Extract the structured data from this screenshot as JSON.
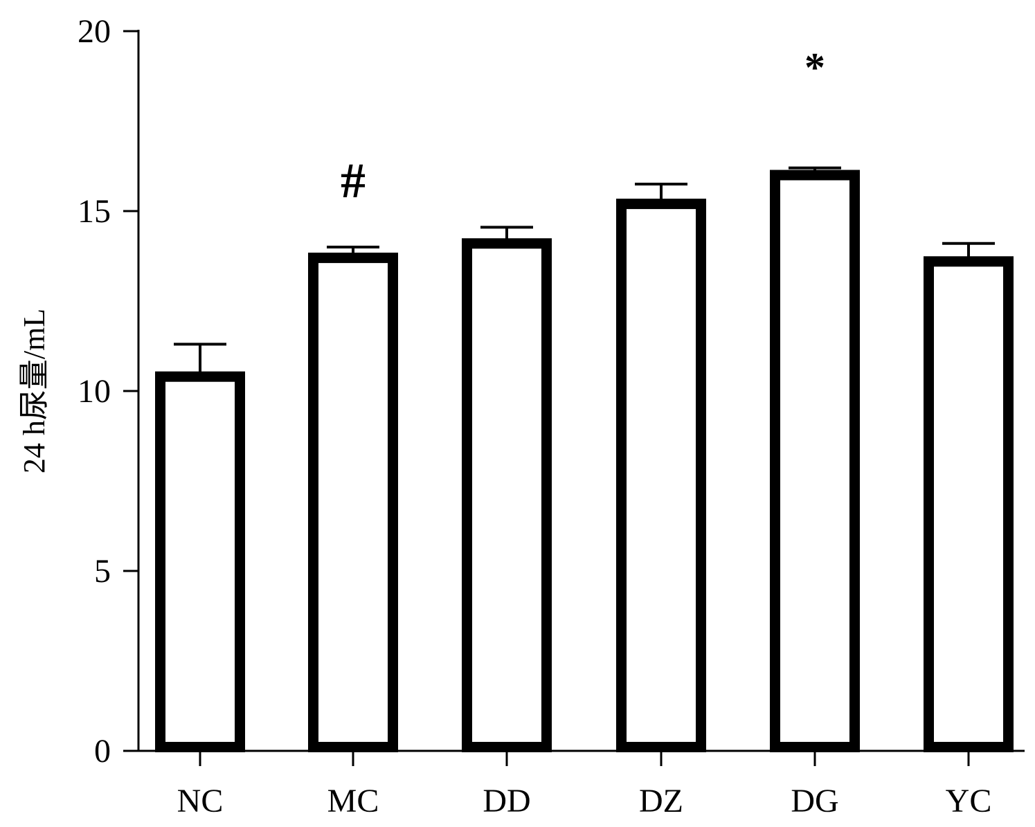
{
  "chart_data": {
    "type": "bar",
    "categories": [
      "NC",
      "MC",
      "DD",
      "DZ",
      "DG",
      "YC"
    ],
    "values": [
      10.4,
      13.7,
      14.1,
      15.2,
      16.0,
      13.6
    ],
    "errors": [
      0.9,
      0.3,
      0.45,
      0.55,
      0.2,
      0.5
    ],
    "annotations": [
      "",
      "#",
      "",
      "",
      "*",
      ""
    ],
    "title": "",
    "xlabel": "",
    "ylabel": "24 h尿量/mL",
    "ylim": [
      0,
      20
    ],
    "yticks": [
      "0",
      "5",
      "10",
      "15",
      "20"
    ],
    "grid": false,
    "bar_fill": "#ffffff",
    "bar_stroke": "#000000"
  }
}
